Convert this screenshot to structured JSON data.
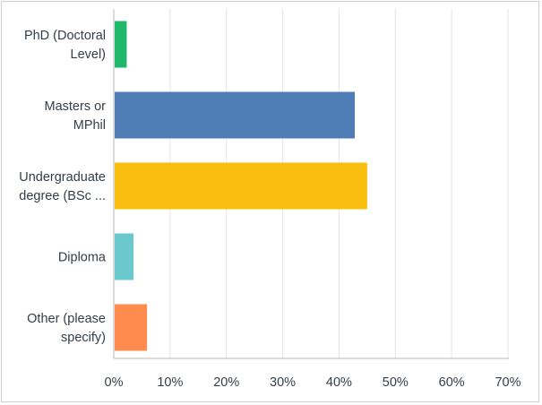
{
  "chart_data": {
    "type": "bar",
    "orientation": "horizontal",
    "title": "",
    "xlabel": "",
    "ylabel": "",
    "xlim": [
      0,
      70
    ],
    "x_ticks": [
      0,
      10,
      20,
      30,
      40,
      50,
      60,
      70
    ],
    "x_tick_labels": [
      "0%",
      "10%",
      "20%",
      "30%",
      "40%",
      "50%",
      "60%",
      "70%"
    ],
    "grid": "vertical",
    "categories": [
      {
        "label_lines": [
          "PhD (Doctoral",
          "Level)"
        ],
        "value": 2.3,
        "color": "#20b96b"
      },
      {
        "label_lines": [
          "Masters or",
          "MPhil"
        ],
        "value": 42.8,
        "color": "#507cb6"
      },
      {
        "label_lines": [
          "Undergraduate",
          "degree (BSc ..."
        ],
        "value": 45.0,
        "color": "#f9be0f"
      },
      {
        "label_lines": [
          "Diploma"
        ],
        "value": 3.5,
        "color": "#6bc8cd"
      },
      {
        "label_lines": [
          "Other (please",
          "specify)"
        ],
        "value": 5.9,
        "color": "#ff8b4f"
      }
    ]
  }
}
